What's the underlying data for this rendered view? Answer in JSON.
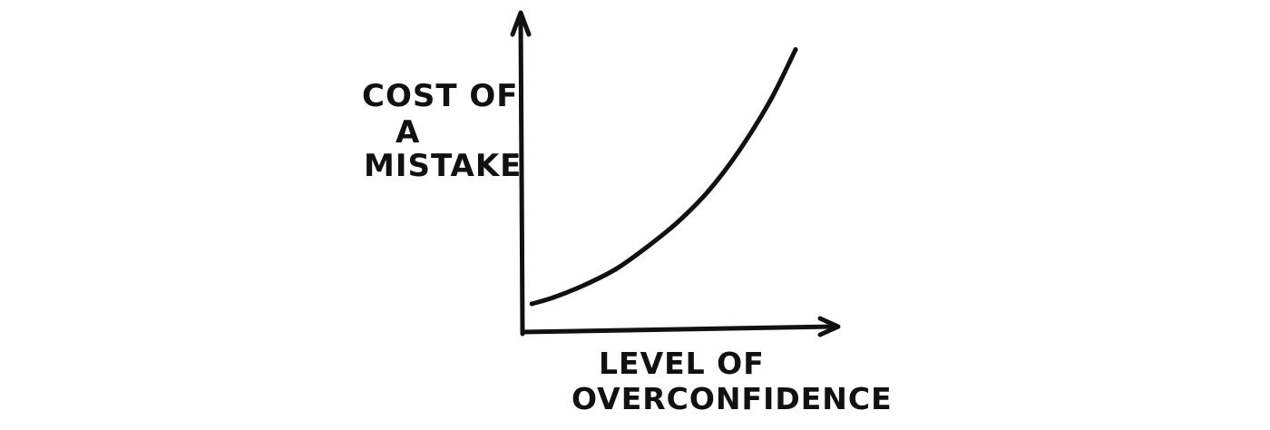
{
  "chart_data": {
    "type": "line",
    "ylabel_lines": [
      "COST OF",
      "A",
      "MISTAKE"
    ],
    "xlabel_lines": [
      "LEVEL OF",
      "OVERCONFIDENCE"
    ],
    "series": [
      {
        "x": [
          0.03,
          0.1,
          0.2,
          0.3,
          0.4,
          0.5,
          0.6,
          0.7,
          0.8,
          0.88
        ],
        "y": [
          0.09,
          0.11,
          0.15,
          0.2,
          0.27,
          0.35,
          0.45,
          0.58,
          0.74,
          0.9
        ]
      }
    ],
    "xlim": [
      0,
      1
    ],
    "ylim": [
      0,
      1
    ],
    "grid": false,
    "ticks": false,
    "colors": {
      "ink": "#111111",
      "background": "#ffffff"
    }
  }
}
